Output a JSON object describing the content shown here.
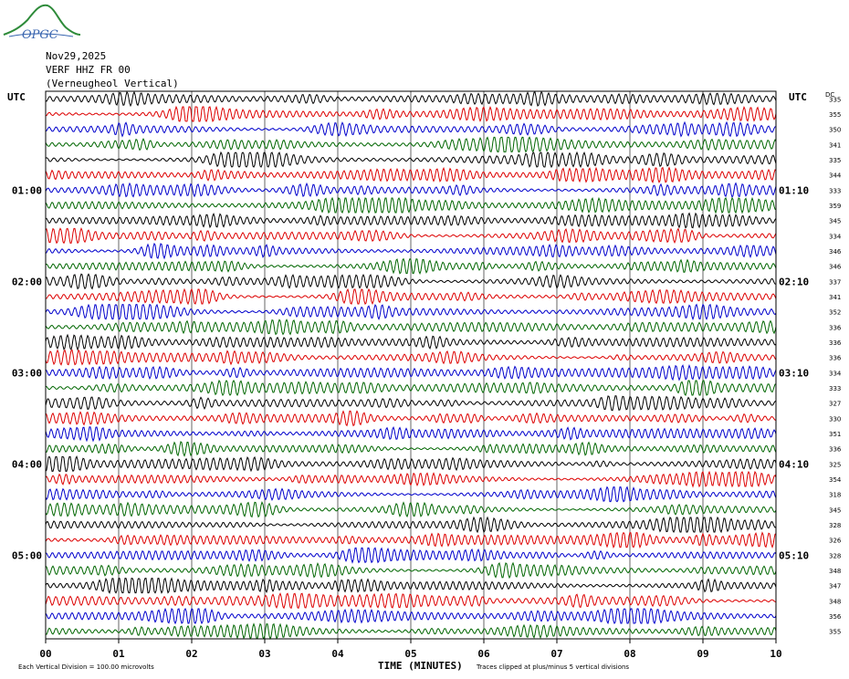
{
  "logo": {
    "text": "OPGC"
  },
  "header": {
    "date": "Nov29,2025",
    "station": "VERF HHZ FR 00",
    "location": "(Verneugheol Vertical)"
  },
  "axis": {
    "left_title": "UTC",
    "right_title": "UTC",
    "dc_title": "DC",
    "xlabel": "TIME (MINUTES)"
  },
  "footer": {
    "scale_note": "Each Vertical Division =  100.00 microvolts",
    "clip_note": "Traces clipped at plus/minus 5 vertical divisions"
  },
  "chart_data": {
    "type": "seismogram-helicorder",
    "x_range": [
      0,
      10
    ],
    "x_ticks": [
      "00",
      "01",
      "02",
      "03",
      "04",
      "05",
      "06",
      "07",
      "08",
      "09",
      "10"
    ],
    "grid": true,
    "trace_count": 36,
    "trace_colors": [
      "#000000",
      "#dd0000",
      "#0000cc",
      "#006600"
    ],
    "left_time_labels": [
      {
        "trace_index": 0,
        "label": "UTC"
      },
      {
        "trace_index": 6,
        "label": "01:00"
      },
      {
        "trace_index": 12,
        "label": "02:00"
      },
      {
        "trace_index": 18,
        "label": "03:00"
      },
      {
        "trace_index": 24,
        "label": "04:00"
      },
      {
        "trace_index": 30,
        "label": "05:00"
      }
    ],
    "right_time_labels": [
      {
        "trace_index": 6,
        "label": "01:10"
      },
      {
        "trace_index": 12,
        "label": "02:10"
      },
      {
        "trace_index": 18,
        "label": "03:10"
      },
      {
        "trace_index": 24,
        "label": "04:10"
      },
      {
        "trace_index": 30,
        "label": "05:10"
      }
    ],
    "dc_offsets": [
      335,
      355,
      350,
      341,
      335,
      344,
      333,
      359,
      345,
      334,
      346,
      346,
      337,
      341,
      352,
      336,
      336,
      336,
      334,
      333,
      327,
      330,
      351,
      336,
      325,
      354,
      318,
      345,
      328,
      326,
      328,
      348,
      347,
      348,
      356,
      355
    ]
  }
}
